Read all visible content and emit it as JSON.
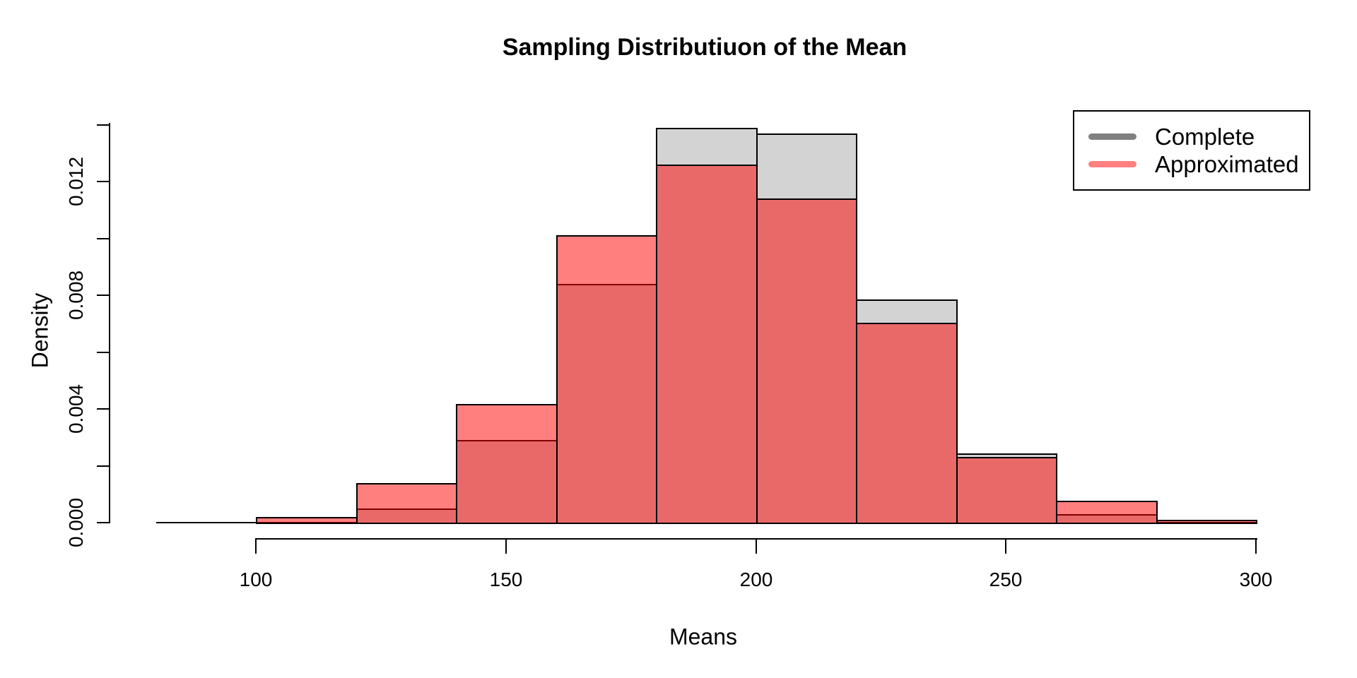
{
  "chart_data": {
    "type": "bar",
    "subtype": "overlaid-histograms",
    "title": "Sampling Distributiuon of the Mean",
    "xlabel": "Means",
    "ylabel": "Density",
    "xlim": [
      80,
      300
    ],
    "ylim": [
      0,
      0.014
    ],
    "grid": false,
    "legend_position": "topright",
    "bin_width": 20,
    "bin_edges": [
      80,
      100,
      120,
      140,
      160,
      180,
      200,
      220,
      240,
      260,
      280,
      300
    ],
    "series": [
      {
        "name": "Complete",
        "densities": [
          2e-05,
          0,
          0.0005,
          0.0029,
          0.0084,
          0.0139,
          0.0137,
          0.00785,
          0.00243,
          0.0003,
          0
        ]
      },
      {
        "name": "Approximated",
        "densities": [
          2e-05,
          0.0002,
          0.0014,
          0.00417,
          0.0101,
          0.0126,
          0.0114,
          0.00703,
          0.0023,
          0.00077,
          0.0001
        ]
      }
    ],
    "x_ticks": [
      {
        "value": 100,
        "label": "100"
      },
      {
        "value": 150,
        "label": "150"
      },
      {
        "value": 200,
        "label": "200"
      },
      {
        "value": 250,
        "label": "250"
      },
      {
        "value": 300,
        "label": "300"
      }
    ],
    "y_ticks": [
      0,
      0.002,
      0.004,
      0.006,
      0.008,
      0.01,
      0.012,
      0.014
    ],
    "y_labeled_ticks": [
      {
        "value": 0,
        "label": "0.000"
      },
      {
        "value": 0.004,
        "label": "0.004"
      },
      {
        "value": 0.008,
        "label": "0.008"
      },
      {
        "value": 0.012,
        "label": "0.012"
      }
    ],
    "colors": {
      "background": "#ffffff",
      "text": "#000000",
      "axis": "#000000",
      "bar_border": "#000000",
      "complete_fill": "#d3d3d3",
      "approximated_fill": "rgba(255,0,0,0.5)",
      "legend_complete": "#808080",
      "legend_approximated": "#ff8080"
    }
  }
}
